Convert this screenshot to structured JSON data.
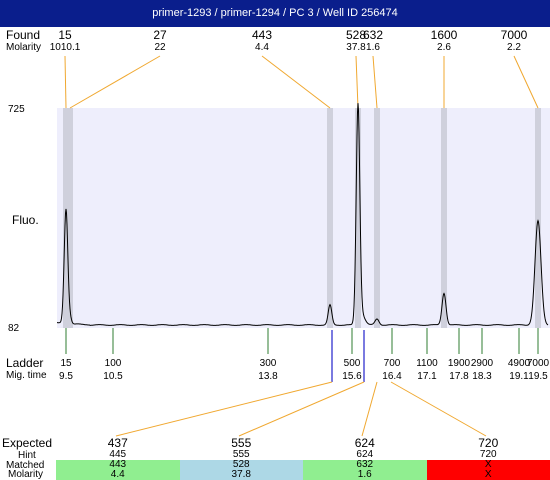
{
  "title": "primer-1293 / primer-1294 / PC 3 / Well ID 256474",
  "labels": {
    "found": "Found",
    "molarity": "Molarity",
    "fluo": "Fluo.",
    "ladder": "Ladder",
    "mig_time": "Mig. time",
    "expected": "Expected",
    "hint": "Hint",
    "matched": "Matched",
    "molarity_bottom": "Molarity"
  },
  "y_axis": {
    "max_label": "725",
    "min_label": "82"
  },
  "found_peaks": [
    {
      "size": "15",
      "molarity": "1010.1"
    },
    {
      "size": "27",
      "molarity": "22"
    },
    {
      "size": "443",
      "molarity": "4.4"
    },
    {
      "size": "528",
      "molarity": "37.8"
    },
    {
      "size": "632",
      "molarity": "1.6"
    },
    {
      "size": "1600",
      "molarity": "2.6"
    },
    {
      "size": "7000",
      "molarity": "2.2"
    }
  ],
  "ladder": [
    {
      "size": "15",
      "time": "9.5"
    },
    {
      "size": "100",
      "time": "10.5"
    },
    {
      "size": "300",
      "time": "13.8"
    },
    {
      "size": "500",
      "time": "15.6"
    },
    {
      "size": "700",
      "time": "16.4"
    },
    {
      "size": "1100",
      "time": "17.1"
    },
    {
      "size": "1900",
      "time": "17.8"
    },
    {
      "size": "2900",
      "time": "18.3"
    },
    {
      "size": "4900",
      "time": "19.1"
    },
    {
      "size": "7000",
      "time": "19.5"
    }
  ],
  "expected": [
    {
      "expected": "437",
      "hint": "445",
      "matched": "443",
      "molarity": "4.4",
      "color": "#90ee90"
    },
    {
      "expected": "555",
      "hint": "555",
      "matched": "528",
      "molarity": "37.8",
      "color": "#add8e6"
    },
    {
      "expected": "624",
      "hint": "624",
      "matched": "632",
      "molarity": "1.6",
      "color": "#90ee90"
    },
    {
      "expected": "720",
      "hint": "720",
      "matched": "X",
      "molarity": "X",
      "color": "#ff0000"
    }
  ],
  "colors": {
    "title_bg": "#0a1e8c",
    "plot_bg": "#eeeefc",
    "band": "#cfd0dc",
    "leader": "#f0a830",
    "ladder_tick": "#2f7d32",
    "marker": "#2222cc"
  }
}
